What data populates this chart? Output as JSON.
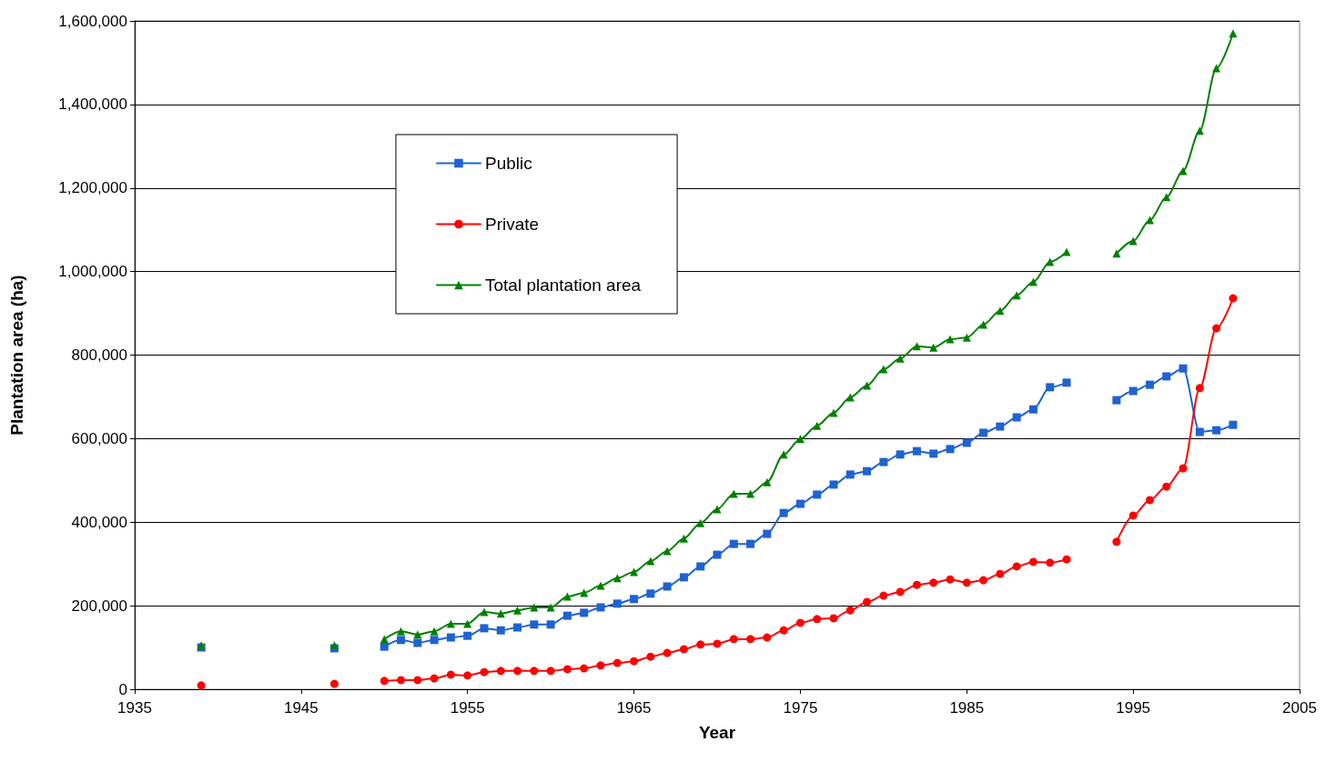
{
  "chart_data": {
    "type": "line",
    "xlabel": "Year",
    "ylabel": "Plantation area (ha)",
    "x": [
      1939,
      1940,
      1947,
      1948,
      1950,
      1951,
      1952,
      1953,
      1954,
      1955,
      1956,
      1957,
      1958,
      1959,
      1960,
      1961,
      1962,
      1963,
      1964,
      1965,
      1966,
      1967,
      1968,
      1969,
      1970,
      1971,
      1972,
      1973,
      1974,
      1975,
      1976,
      1977,
      1978,
      1979,
      1980,
      1981,
      1982,
      1983,
      1984,
      1985,
      1986,
      1987,
      1988,
      1989,
      1990,
      1991,
      1992,
      1994,
      1995,
      1996,
      1997,
      1998,
      1999,
      2000,
      2001
    ],
    "series": [
      {
        "name": "Public",
        "color": "#1f62d0",
        "marker": "square",
        "values": [
          100000,
          null,
          98000,
          null,
          102000,
          118000,
          111000,
          118000,
          124000,
          128000,
          146000,
          141000,
          148000,
          155000,
          155000,
          176000,
          183000,
          196000,
          205000,
          216000,
          229000,
          246000,
          268000,
          294000,
          322000,
          348000,
          348000,
          372000,
          422000,
          444000,
          466000,
          490000,
          514000,
          522000,
          544000,
          562000,
          570000,
          564000,
          575000,
          590000,
          614000,
          629000,
          651000,
          670000,
          723000,
          734000,
          null,
          692000,
          714000,
          729000,
          749000,
          768000,
          616000,
          620000,
          633000
        ]
      },
      {
        "name": "Private",
        "color": "#ff0000",
        "marker": "circle",
        "values": [
          9000,
          null,
          13000,
          null,
          20000,
          22000,
          22000,
          26000,
          35000,
          33000,
          41000,
          44000,
          44000,
          44000,
          44000,
          48000,
          50000,
          57000,
          63000,
          67000,
          78000,
          87000,
          96000,
          107000,
          109000,
          120000,
          120000,
          124000,
          141000,
          159000,
          168000,
          170000,
          189000,
          209000,
          224000,
          233000,
          250000,
          255000,
          263000,
          255000,
          261000,
          276000,
          294000,
          305000,
          303000,
          311000,
          null,
          353000,
          416000,
          453000,
          485000,
          529000,
          721000,
          864000,
          936000
        ]
      },
      {
        "name": "Total plantation area",
        "color": "#008000",
        "marker": "triangle",
        "values": [
          105000,
          null,
          105000,
          null,
          120000,
          139000,
          131000,
          139000,
          157000,
          157000,
          185000,
          181000,
          189000,
          196000,
          196000,
          222000,
          231000,
          248000,
          266000,
          281000,
          307000,
          331000,
          361000,
          398000,
          431000,
          468000,
          468000,
          496000,
          562000,
          599000,
          631000,
          662000,
          699000,
          727000,
          766000,
          792000,
          821000,
          818000,
          838000,
          842000,
          873000,
          906000,
          943000,
          975000,
          1023000,
          1047000,
          null,
          1043000,
          1073000,
          1123000,
          1178000,
          1241000,
          1337000,
          1487000,
          1570000
        ]
      }
    ],
    "xlim": [
      1935,
      2005
    ],
    "xticks": [
      1935,
      1945,
      1955,
      1965,
      1975,
      1985,
      1995,
      2005
    ],
    "ylim": [
      0,
      1600000
    ],
    "yticks": [
      0,
      {
        "value": 200000,
        "label": "200,000"
      },
      {
        "value": 400000,
        "label": "400,000"
      },
      {
        "value": 600000,
        "label": "600,000"
      },
      {
        "value": 800000,
        "label": "800,000"
      },
      {
        "value": 1000000,
        "label": "1,000,000"
      },
      {
        "value": 1200000,
        "label": "1,200,000"
      },
      {
        "value": 1400000,
        "label": "1,400,000"
      },
      {
        "value": 1600000,
        "label": "1,600,000"
      }
    ],
    "grid": "y",
    "legend": "top left",
    "line_style": "solid"
  }
}
